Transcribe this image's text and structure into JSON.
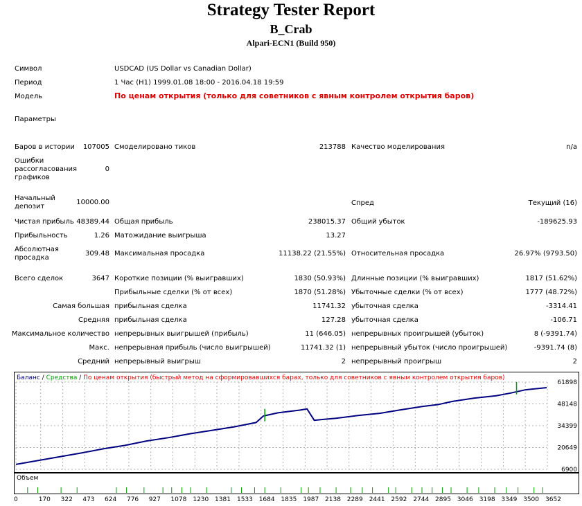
{
  "header": {
    "title": "Strategy Tester Report",
    "expert": "B_Crab",
    "server": "Alpari-ECN1 (Build 950)"
  },
  "info": {
    "symbol_label": "Символ",
    "symbol_value": "USDCAD (US Dollar vs Canadian Dollar)",
    "period_label": "Период",
    "period_value": "1 Час (H1) 1999.01.08 18:00 - 2016.04.18 19:59",
    "model_label": "Модель",
    "model_value": "По ценам открытия (только для советников с явным контролем открытия баров)",
    "params_label": "Параметры"
  },
  "stats": {
    "bars_label": "Баров в истории",
    "bars_value": "107005",
    "ticks_label": "Смоделировано тиков",
    "ticks_value": "213788",
    "quality_label": "Качество моделирования",
    "quality_value": "n/a",
    "errors_label": "Ошибки рассогласования графиков",
    "errors_value": "0",
    "deposit_label": "Начальный депозит",
    "deposit_value": "10000.00",
    "spread_label": "Спред",
    "spread_value": "Текущий (16)",
    "net_label": "Чистая прибыль",
    "net_value": "48389.44",
    "gross_profit_label": "Общая прибыль",
    "gross_profit_value": "238015.37",
    "gross_loss_label": "Общий убыток",
    "gross_loss_value": "-189625.93",
    "pf_label": "Прибыльность",
    "pf_value": "1.26",
    "payoff_label": "Матожидание выигрыша",
    "payoff_value": "13.27",
    "abs_dd_label": "Абсолютная просадка",
    "abs_dd_value": "309.48",
    "max_dd_label": "Максимальная просадка",
    "max_dd_value": "11138.22 (21.55%)",
    "rel_dd_label": "Относительная просадка",
    "rel_dd_value": "26.97% (9793.50)",
    "trades_label": "Всего сделок",
    "trades_value": "3647",
    "short_label": "Короткие позиции (% выигравших)",
    "short_value": "1830 (50.93%)",
    "long_label": "Длинные позиции (% выигравших)",
    "long_value": "1817 (51.62%)",
    "profit_trades_label": "Прибыльные сделки (% от всех)",
    "profit_trades_value": "1870 (51.28%)",
    "loss_trades_label": "Убыточные сделки (% от всех)",
    "loss_trades_value": "1777 (48.72%)",
    "largest_label": "Самая большая",
    "largest_profit_label": "прибыльная сделка",
    "largest_profit_value": "11741.32",
    "largest_loss_label": "убыточная сделка",
    "largest_loss_value": "-3314.41",
    "average_label": "Средняя",
    "avg_profit_label": "прибыльная сделка",
    "avg_profit_value": "127.28",
    "avg_loss_label": "убыточная сделка",
    "avg_loss_value": "-106.71",
    "max_count_label": "Максимальное количество",
    "cons_wins_label": "непрерывных выигрышей (прибыль)",
    "cons_wins_value": "11 (646.05)",
    "cons_losses_label": "непрерывных проигрышей (убыток)",
    "cons_losses_value": "8 (-9391.74)",
    "max_label": "Макс.",
    "cons_profit_label": "непрерывная прибыль (число выигрышей)",
    "cons_profit_value": "11741.32 (1)",
    "cons_loss_label": "непрерывный убыток (число проигрышей)",
    "cons_loss_value": "-9391.74 (8)",
    "avg_cons_label": "Средний",
    "avg_cons_wins_label": "непрерывный выигрыш",
    "avg_cons_wins_value": "2",
    "avg_cons_losses_label": "непрерывный проигрыш",
    "avg_cons_losses_value": "2"
  },
  "chart_legend": {
    "balance": "Баланс",
    "sep1": " / ",
    "equity": "Средства",
    "sep2": " / ",
    "note": "По ценам открытия (быстрый метод на сформировавшихся барах, только для советников с явным контролем открытия баров)"
  },
  "colors": {
    "balance": "#000080",
    "equity": "#00a000",
    "note": "#e00000",
    "volume": "#00a000"
  },
  "volume_label": "Объем",
  "chart_data": {
    "type": "line",
    "series": [
      {
        "name": "Баланс",
        "x": [
          0,
          150,
          300,
          450,
          600,
          750,
          900,
          1050,
          1200,
          1350,
          1500,
          1650,
          1700,
          1800,
          1950,
          2000,
          2050,
          2100,
          2200,
          2350,
          2500,
          2650,
          2800,
          2900,
          3000,
          3150,
          3300,
          3400,
          3500,
          3647
        ],
        "values": [
          10000,
          12400,
          14800,
          17200,
          19800,
          22000,
          24800,
          26900,
          29400,
          31500,
          33700,
          36400,
          40500,
          42500,
          44200,
          45000,
          37800,
          38300,
          39100,
          40800,
          42200,
          44500,
          46600,
          47700,
          49700,
          51800,
          53300,
          55000,
          57000,
          58400
        ]
      },
      {
        "name": "Средства",
        "x": [
          1710,
          3440
        ],
        "values": [
          45000,
          62000
        ]
      }
    ],
    "y_ticks": [
      61898,
      48148,
      34399,
      20649,
      6900
    ],
    "x_ticks": [
      0,
      170,
      322,
      473,
      624,
      776,
      927,
      1078,
      1230,
      1381,
      1533,
      1684,
      1835,
      1987,
      2138,
      2289,
      2441,
      2592,
      2744,
      2895,
      3046,
      3198,
      3349,
      3500,
      3652
    ],
    "xlim": [
      0,
      3647
    ],
    "ylim": [
      6900,
      61898
    ],
    "volume_spikes": [
      80,
      150,
      310,
      420,
      690,
      760,
      880,
      1010,
      1070,
      1140,
      1200,
      1310,
      1480,
      1550,
      1640,
      1710,
      1820,
      1960,
      2010,
      2090,
      2200,
      2300,
      2380,
      2450,
      2560,
      2610,
      2720,
      2790,
      2860,
      2930,
      2990,
      3100,
      3180,
      3290,
      3370,
      3450,
      3560,
      3620
    ],
    "grid": true
  }
}
